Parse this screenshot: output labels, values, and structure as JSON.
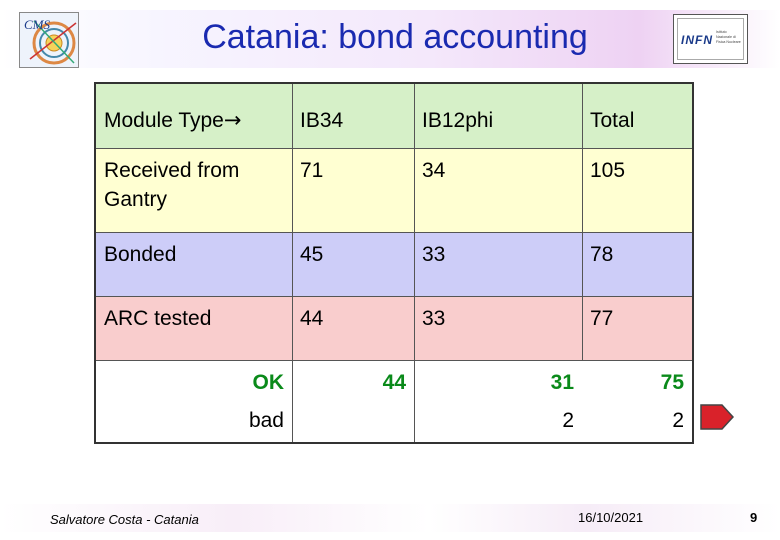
{
  "slide": {
    "title": "Catania: bond accounting",
    "footer_author": "Salvatore Costa - Catania",
    "footer_date": "16/10/2021",
    "footer_page": "9"
  },
  "table": {
    "header": {
      "label": "Module Type",
      "arrow": "→",
      "col1": "IB34",
      "col2": "IB12phi",
      "col3": "Total"
    },
    "rows": [
      {
        "label": "Received from Gantry",
        "col1": "71",
        "col2": "34",
        "col3": "105",
        "color": "#ffffd2"
      },
      {
        "label": "Bonded",
        "col1": "45",
        "col2": "33",
        "col3": "78",
        "color": "#cdcdf8"
      },
      {
        "label": "ARC tested",
        "col1": "44",
        "col2": "33",
        "col3": "77",
        "color": "#f9cdcd"
      }
    ],
    "arc_breakdown": {
      "ok_label": "OK",
      "ok_col1": "44",
      "ok_col2": "31",
      "ok_col3": "75",
      "bad_label": "bad",
      "bad_col2": "2",
      "bad_col3": "2"
    },
    "header_color": "#d6f0c8"
  },
  "colors": {
    "title": "#1a2ab0",
    "ok_green": "#0a8a1a",
    "arrow_red": "#d9222a"
  },
  "logos": {
    "left_icon": "cms-logo",
    "right_icon": "infn-logo",
    "cms_text": "CMS",
    "infn_text": "INFN",
    "infn_subtext": "Istituto Nazionale di Fisica Nucleare"
  }
}
